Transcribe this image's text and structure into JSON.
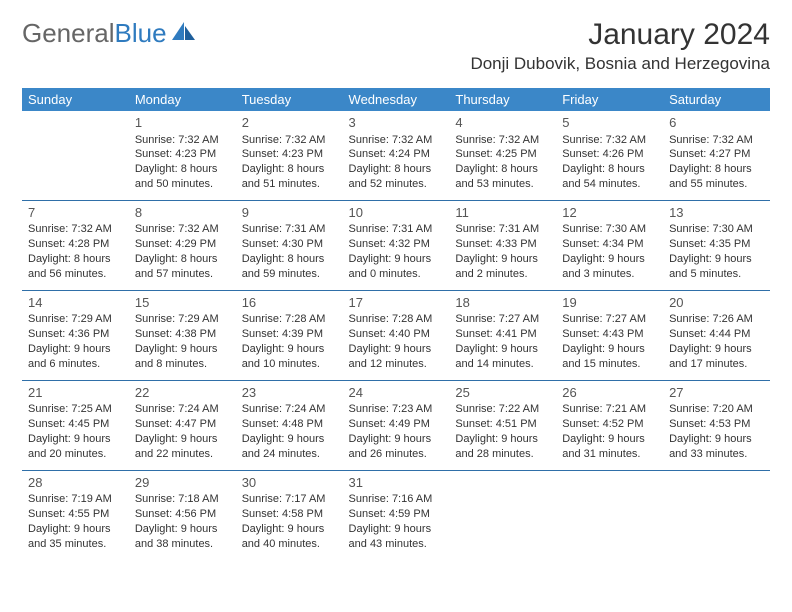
{
  "brand": {
    "word1": "General",
    "word2": "Blue"
  },
  "title": "January 2024",
  "location": "Donji Dubovik, Bosnia and Herzegovina",
  "colors": {
    "header_bg": "#3b87c8",
    "header_text": "#ffffff",
    "row_divider": "#2f6fa8",
    "text": "#333333",
    "brand_gray": "#666666",
    "brand_blue": "#2f7bbf",
    "background": "#ffffff"
  },
  "weekday_labels": [
    "Sunday",
    "Monday",
    "Tuesday",
    "Wednesday",
    "Thursday",
    "Friday",
    "Saturday"
  ],
  "weeks": [
    [
      null,
      {
        "d": "1",
        "sr": "7:32 AM",
        "ss": "4:23 PM",
        "dl1": "Daylight: 8 hours",
        "dl2": "and 50 minutes."
      },
      {
        "d": "2",
        "sr": "7:32 AM",
        "ss": "4:23 PM",
        "dl1": "Daylight: 8 hours",
        "dl2": "and 51 minutes."
      },
      {
        "d": "3",
        "sr": "7:32 AM",
        "ss": "4:24 PM",
        "dl1": "Daylight: 8 hours",
        "dl2": "and 52 minutes."
      },
      {
        "d": "4",
        "sr": "7:32 AM",
        "ss": "4:25 PM",
        "dl1": "Daylight: 8 hours",
        "dl2": "and 53 minutes."
      },
      {
        "d": "5",
        "sr": "7:32 AM",
        "ss": "4:26 PM",
        "dl1": "Daylight: 8 hours",
        "dl2": "and 54 minutes."
      },
      {
        "d": "6",
        "sr": "7:32 AM",
        "ss": "4:27 PM",
        "dl1": "Daylight: 8 hours",
        "dl2": "and 55 minutes."
      }
    ],
    [
      {
        "d": "7",
        "sr": "7:32 AM",
        "ss": "4:28 PM",
        "dl1": "Daylight: 8 hours",
        "dl2": "and 56 minutes."
      },
      {
        "d": "8",
        "sr": "7:32 AM",
        "ss": "4:29 PM",
        "dl1": "Daylight: 8 hours",
        "dl2": "and 57 minutes."
      },
      {
        "d": "9",
        "sr": "7:31 AM",
        "ss": "4:30 PM",
        "dl1": "Daylight: 8 hours",
        "dl2": "and 59 minutes."
      },
      {
        "d": "10",
        "sr": "7:31 AM",
        "ss": "4:32 PM",
        "dl1": "Daylight: 9 hours",
        "dl2": "and 0 minutes."
      },
      {
        "d": "11",
        "sr": "7:31 AM",
        "ss": "4:33 PM",
        "dl1": "Daylight: 9 hours",
        "dl2": "and 2 minutes."
      },
      {
        "d": "12",
        "sr": "7:30 AM",
        "ss": "4:34 PM",
        "dl1": "Daylight: 9 hours",
        "dl2": "and 3 minutes."
      },
      {
        "d": "13",
        "sr": "7:30 AM",
        "ss": "4:35 PM",
        "dl1": "Daylight: 9 hours",
        "dl2": "and 5 minutes."
      }
    ],
    [
      {
        "d": "14",
        "sr": "7:29 AM",
        "ss": "4:36 PM",
        "dl1": "Daylight: 9 hours",
        "dl2": "and 6 minutes."
      },
      {
        "d": "15",
        "sr": "7:29 AM",
        "ss": "4:38 PM",
        "dl1": "Daylight: 9 hours",
        "dl2": "and 8 minutes."
      },
      {
        "d": "16",
        "sr": "7:28 AM",
        "ss": "4:39 PM",
        "dl1": "Daylight: 9 hours",
        "dl2": "and 10 minutes."
      },
      {
        "d": "17",
        "sr": "7:28 AM",
        "ss": "4:40 PM",
        "dl1": "Daylight: 9 hours",
        "dl2": "and 12 minutes."
      },
      {
        "d": "18",
        "sr": "7:27 AM",
        "ss": "4:41 PM",
        "dl1": "Daylight: 9 hours",
        "dl2": "and 14 minutes."
      },
      {
        "d": "19",
        "sr": "7:27 AM",
        "ss": "4:43 PM",
        "dl1": "Daylight: 9 hours",
        "dl2": "and 15 minutes."
      },
      {
        "d": "20",
        "sr": "7:26 AM",
        "ss": "4:44 PM",
        "dl1": "Daylight: 9 hours",
        "dl2": "and 17 minutes."
      }
    ],
    [
      {
        "d": "21",
        "sr": "7:25 AM",
        "ss": "4:45 PM",
        "dl1": "Daylight: 9 hours",
        "dl2": "and 20 minutes."
      },
      {
        "d": "22",
        "sr": "7:24 AM",
        "ss": "4:47 PM",
        "dl1": "Daylight: 9 hours",
        "dl2": "and 22 minutes."
      },
      {
        "d": "23",
        "sr": "7:24 AM",
        "ss": "4:48 PM",
        "dl1": "Daylight: 9 hours",
        "dl2": "and 24 minutes."
      },
      {
        "d": "24",
        "sr": "7:23 AM",
        "ss": "4:49 PM",
        "dl1": "Daylight: 9 hours",
        "dl2": "and 26 minutes."
      },
      {
        "d": "25",
        "sr": "7:22 AM",
        "ss": "4:51 PM",
        "dl1": "Daylight: 9 hours",
        "dl2": "and 28 minutes."
      },
      {
        "d": "26",
        "sr": "7:21 AM",
        "ss": "4:52 PM",
        "dl1": "Daylight: 9 hours",
        "dl2": "and 31 minutes."
      },
      {
        "d": "27",
        "sr": "7:20 AM",
        "ss": "4:53 PM",
        "dl1": "Daylight: 9 hours",
        "dl2": "and 33 minutes."
      }
    ],
    [
      {
        "d": "28",
        "sr": "7:19 AM",
        "ss": "4:55 PM",
        "dl1": "Daylight: 9 hours",
        "dl2": "and 35 minutes."
      },
      {
        "d": "29",
        "sr": "7:18 AM",
        "ss": "4:56 PM",
        "dl1": "Daylight: 9 hours",
        "dl2": "and 38 minutes."
      },
      {
        "d": "30",
        "sr": "7:17 AM",
        "ss": "4:58 PM",
        "dl1": "Daylight: 9 hours",
        "dl2": "and 40 minutes."
      },
      {
        "d": "31",
        "sr": "7:16 AM",
        "ss": "4:59 PM",
        "dl1": "Daylight: 9 hours",
        "dl2": "and 43 minutes."
      },
      null,
      null,
      null
    ]
  ],
  "labels": {
    "sunrise_prefix": "Sunrise: ",
    "sunset_prefix": "Sunset: "
  }
}
